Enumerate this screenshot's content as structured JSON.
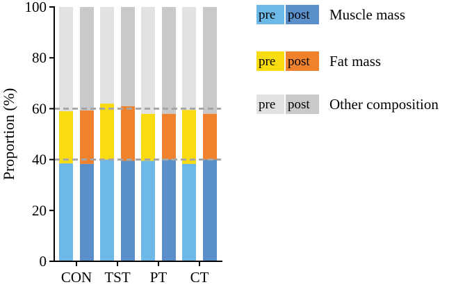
{
  "chart_data": {
    "type": "bar",
    "stacked": true,
    "ylabel": "Proportion (%)",
    "ylim": [
      0,
      100
    ],
    "yticks": [
      0,
      20,
      40,
      60,
      80,
      100
    ],
    "reference_lines": [
      40,
      60
    ],
    "groups": [
      "CON",
      "TST",
      "PT",
      "CT"
    ],
    "phases": [
      "pre",
      "post"
    ],
    "series": [
      {
        "name": "Muscle mass",
        "colors": {
          "pre": "#6cb8e6",
          "post": "#5b8fc9"
        },
        "values": {
          "CON": {
            "pre": 38.5,
            "post": 38.3
          },
          "TST": {
            "pre": 40.0,
            "post": 39.5
          },
          "PT": {
            "pre": 39.5,
            "post": 40.0
          },
          "CT": {
            "pre": 38.3,
            "post": 40.0
          }
        }
      },
      {
        "name": "Fat mass",
        "colors": {
          "pre": "#f9dc0f",
          "post": "#f0822d"
        },
        "values": {
          "CON": {
            "pre": 20.5,
            "post": 21.0
          },
          "TST": {
            "pre": 22.0,
            "post": 21.5
          },
          "PT": {
            "pre": 18.5,
            "post": 18.0
          },
          "CT": {
            "pre": 21.2,
            "post": 18.0
          }
        }
      },
      {
        "name": "Other composition",
        "colors": {
          "pre": "#e2e2e4",
          "post": "#c9c9cc"
        },
        "values": {
          "CON": {
            "pre": 41.0,
            "post": 40.7
          },
          "TST": {
            "pre": 38.0,
            "post": 39.0
          },
          "PT": {
            "pre": 42.0,
            "post": 42.0
          },
          "CT": {
            "pre": 40.5,
            "post": 42.0
          }
        }
      }
    ],
    "legend": {
      "pre_label": "pre",
      "post_label": "post",
      "entries": [
        "Muscle mass",
        "Fat mass",
        "Other composition"
      ]
    }
  }
}
